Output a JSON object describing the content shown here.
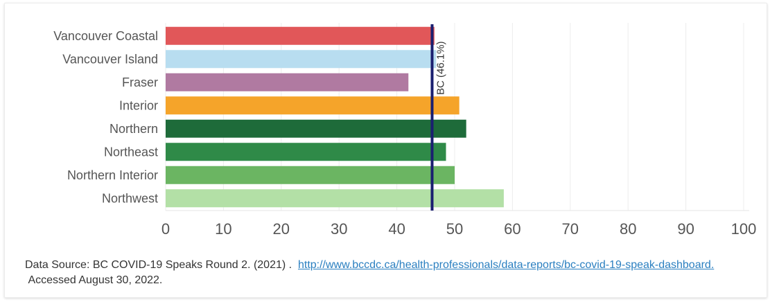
{
  "chart_data": {
    "type": "bar",
    "orientation": "horizontal",
    "categories": [
      "Vancouver Coastal",
      "Vancouver Island",
      "Fraser",
      "Interior",
      "Northern",
      "Northeast",
      "Northern Interior",
      "Northwest"
    ],
    "values": [
      46.5,
      46.8,
      42,
      50.8,
      52,
      48.5,
      50,
      58.5
    ],
    "colors": [
      "#e15759",
      "#b8ddf0",
      "#b07aa1",
      "#f5a42a",
      "#1e6b3a",
      "#2f8a48",
      "#6bb562",
      "#b3e0a6"
    ],
    "xlim": [
      0,
      100
    ],
    "xticks": [
      "0",
      "10",
      "20",
      "30",
      "40",
      "50",
      "60",
      "70",
      "80",
      "90",
      "100"
    ],
    "reference_line": {
      "value": 46.1,
      "label": "BC (46.1%)",
      "color": "#1a1f70"
    },
    "grid": "vertical"
  },
  "source": {
    "prefix": "Data Source: BC COVID-19 Speaks Round 2. (2021) .",
    "link_text": "http://www.bccdc.ca/health-professionals/data-reports/bc-covid-19-speak-dashboard.",
    "suffix": "Accessed August 30, 2022."
  }
}
